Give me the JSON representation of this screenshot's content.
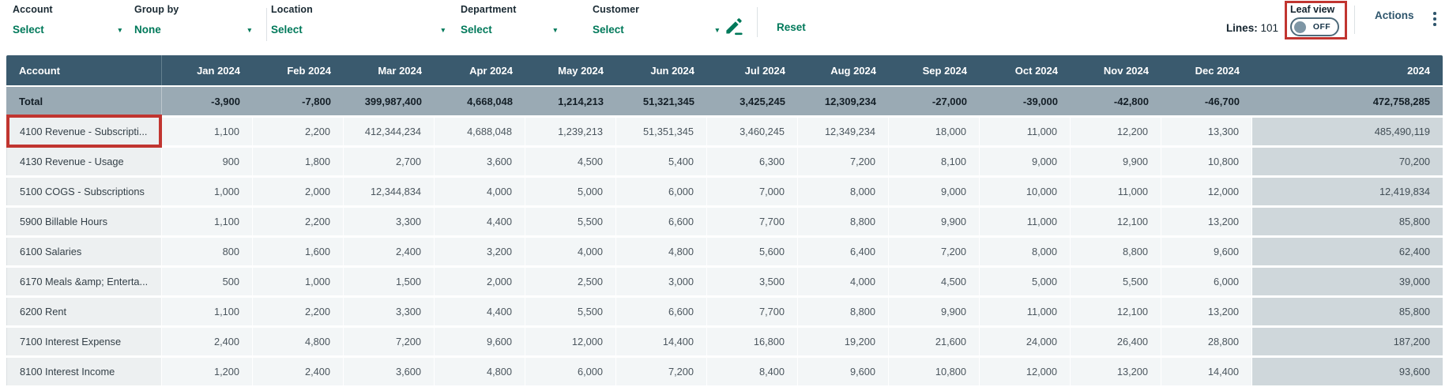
{
  "filter_bar": {
    "filters": [
      {
        "label": "Account",
        "value": "Select"
      },
      {
        "label": "Group by",
        "value": "None"
      },
      {
        "label": "Location",
        "value": "Select"
      },
      {
        "label": "Department",
        "value": "Select"
      },
      {
        "label": "Customer",
        "value": "Select"
      }
    ],
    "reset_label": "Reset"
  },
  "toolbar": {
    "lines_label": "Lines:",
    "lines_count": "101",
    "leaf_view": {
      "label": "Leaf view",
      "state": "OFF"
    },
    "actions_label": "Actions"
  },
  "table": {
    "columns": [
      "Account",
      "Jan 2024",
      "Feb 2024",
      "Mar 2024",
      "Apr 2024",
      "May 2024",
      "Jun 2024",
      "Jul 2024",
      "Aug 2024",
      "Sep 2024",
      "Oct 2024",
      "Nov 2024",
      "Dec 2024",
      "2024"
    ],
    "total_row": {
      "account": "Total",
      "values": [
        "-3,900",
        "-7,800",
        "399,987,400",
        "4,668,048",
        "1,214,213",
        "51,321,345",
        "3,425,245",
        "12,309,234",
        "-27,000",
        "-39,000",
        "-42,800",
        "-46,700",
        "472,758,285"
      ]
    },
    "rows": [
      {
        "account": "4100 Revenue - Subscripti...",
        "highlighted": true,
        "values": [
          "1,100",
          "2,200",
          "412,344,234",
          "4,688,048",
          "1,239,213",
          "51,351,345",
          "3,460,245",
          "12,349,234",
          "18,000",
          "11,000",
          "12,200",
          "13,300",
          "485,490,119"
        ]
      },
      {
        "account": "4130 Revenue - Usage",
        "highlighted": false,
        "values": [
          "900",
          "1,800",
          "2,700",
          "3,600",
          "4,500",
          "5,400",
          "6,300",
          "7,200",
          "8,100",
          "9,000",
          "9,900",
          "10,800",
          "70,200"
        ]
      },
      {
        "account": "5100 COGS - Subscriptions",
        "highlighted": false,
        "values": [
          "1,000",
          "2,000",
          "12,344,834",
          "4,000",
          "5,000",
          "6,000",
          "7,000",
          "8,000",
          "9,000",
          "10,000",
          "11,000",
          "12,000",
          "12,419,834"
        ]
      },
      {
        "account": "5900 Billable Hours",
        "highlighted": false,
        "values": [
          "1,100",
          "2,200",
          "3,300",
          "4,400",
          "5,500",
          "6,600",
          "7,700",
          "8,800",
          "9,900",
          "11,000",
          "12,100",
          "13,200",
          "85,800"
        ]
      },
      {
        "account": "6100 Salaries",
        "highlighted": false,
        "values": [
          "800",
          "1,600",
          "2,400",
          "3,200",
          "4,000",
          "4,800",
          "5,600",
          "6,400",
          "7,200",
          "8,000",
          "8,800",
          "9,600",
          "62,400"
        ]
      },
      {
        "account": "6170 Meals &amp; Enterta...",
        "highlighted": false,
        "values": [
          "500",
          "1,000",
          "1,500",
          "2,000",
          "2,500",
          "3,000",
          "3,500",
          "4,000",
          "4,500",
          "5,000",
          "5,500",
          "6,000",
          "39,000"
        ]
      },
      {
        "account": "6200 Rent",
        "highlighted": false,
        "values": [
          "1,100",
          "2,200",
          "3,300",
          "4,400",
          "5,500",
          "6,600",
          "7,700",
          "8,800",
          "9,900",
          "11,000",
          "12,100",
          "13,200",
          "85,800"
        ]
      },
      {
        "account": "7100 Interest Expense",
        "highlighted": false,
        "values": [
          "2,400",
          "4,800",
          "7,200",
          "9,600",
          "12,000",
          "14,400",
          "16,800",
          "19,200",
          "21,600",
          "24,000",
          "26,400",
          "28,800",
          "187,200"
        ]
      },
      {
        "account": "8100 Interest Income",
        "highlighted": false,
        "values": [
          "1,200",
          "2,400",
          "3,600",
          "4,800",
          "6,000",
          "7,200",
          "8,400",
          "9,600",
          "10,800",
          "12,000",
          "13,200",
          "14,400",
          "93,600"
        ]
      }
    ]
  },
  "annotations": {
    "boxes": [
      "leaf-view-toggle",
      "first-account-row"
    ]
  },
  "colors": {
    "accent_green": "#00795a",
    "header_bg": "#3a5a6e",
    "total_row_bg": "#9aaab4",
    "account_cell_bg": "#edf0f1",
    "data_cell_bg": "#f3f6f7",
    "year_column_bg": "#cfd7db",
    "annotation_red": "#c13530",
    "slate_text": "#2e556c"
  }
}
